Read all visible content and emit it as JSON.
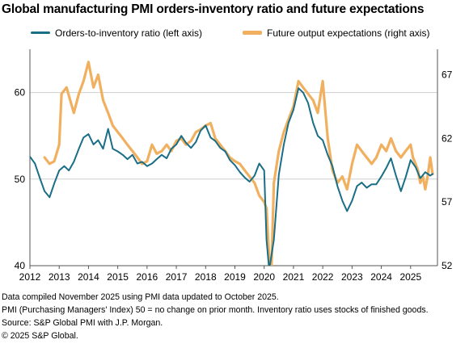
{
  "title": "Global manufacturing PMI orders-inventory ratio and future expectations",
  "notes": [
    "Data compiled November 2025 using PMI data updated to October 2025.",
    "PMI (Purchasing Managers' Index) 50 = no change on prior month. Inventory ratio uses stocks of finished goods.",
    "Source: S&P Global PMI with J.P. Morgan.",
    "© 2025 S&P Global."
  ],
  "chart_data": {
    "type": "line",
    "title": "Global manufacturing PMI orders-inventory ratio and future expectations",
    "x_tick_labels": [
      "2012",
      "2013",
      "2014",
      "2015",
      "2016",
      "2017",
      "2018",
      "2019",
      "2020",
      "2021",
      "2022",
      "2023",
      "2024",
      "2025"
    ],
    "x_range": [
      2012.0,
      2025.917
    ],
    "left_axis": {
      "range": [
        40,
        65
      ],
      "ticks": [
        40,
        50,
        60
      ]
    },
    "right_axis": {
      "range": [
        52,
        69
      ],
      "ticks": [
        52,
        57,
        62,
        67
      ]
    },
    "grid": "horizontal at left-axis ticks",
    "legend_position": "top",
    "series": [
      {
        "name": "Orders-to-inventory ratio (left axis)",
        "axis": "left",
        "color": "#1a6e86",
        "points": [
          [
            2012.0,
            52.6
          ],
          [
            2012.17,
            51.8
          ],
          [
            2012.33,
            50.2
          ],
          [
            2012.5,
            48.6
          ],
          [
            2012.67,
            47.9
          ],
          [
            2012.83,
            49.5
          ],
          [
            2013.0,
            51.0
          ],
          [
            2013.17,
            51.5
          ],
          [
            2013.33,
            51.0
          ],
          [
            2013.5,
            52.0
          ],
          [
            2013.67,
            53.5
          ],
          [
            2013.83,
            54.8
          ],
          [
            2014.0,
            55.2
          ],
          [
            2014.17,
            54.0
          ],
          [
            2014.33,
            54.5
          ],
          [
            2014.5,
            53.5
          ],
          [
            2014.67,
            55.8
          ],
          [
            2014.83,
            53.5
          ],
          [
            2015.0,
            53.2
          ],
          [
            2015.17,
            52.8
          ],
          [
            2015.33,
            52.3
          ],
          [
            2015.5,
            52.8
          ],
          [
            2015.67,
            51.8
          ],
          [
            2015.83,
            52.0
          ],
          [
            2016.0,
            51.5
          ],
          [
            2016.17,
            51.8
          ],
          [
            2016.33,
            52.3
          ],
          [
            2016.5,
            52.8
          ],
          [
            2016.67,
            52.4
          ],
          [
            2016.83,
            53.5
          ],
          [
            2017.0,
            54.0
          ],
          [
            2017.17,
            55.0
          ],
          [
            2017.33,
            54.2
          ],
          [
            2017.5,
            53.6
          ],
          [
            2017.67,
            54.3
          ],
          [
            2017.83,
            55.6
          ],
          [
            2018.0,
            56.2
          ],
          [
            2018.17,
            54.8
          ],
          [
            2018.33,
            54.4
          ],
          [
            2018.5,
            53.6
          ],
          [
            2018.67,
            53.2
          ],
          [
            2018.83,
            52.2
          ],
          [
            2019.0,
            51.6
          ],
          [
            2019.17,
            50.8
          ],
          [
            2019.33,
            50.2
          ],
          [
            2019.5,
            49.7
          ],
          [
            2019.67,
            50.4
          ],
          [
            2019.83,
            51.8
          ],
          [
            2020.0,
            51.0
          ],
          [
            2020.08,
            43.0
          ],
          [
            2020.17,
            39.5
          ],
          [
            2020.33,
            43.0
          ],
          [
            2020.5,
            50.5
          ],
          [
            2020.67,
            54.0
          ],
          [
            2020.83,
            56.5
          ],
          [
            2021.0,
            58.0
          ],
          [
            2021.17,
            60.5
          ],
          [
            2021.33,
            60.0
          ],
          [
            2021.5,
            58.8
          ],
          [
            2021.67,
            56.5
          ],
          [
            2021.83,
            55.0
          ],
          [
            2022.0,
            54.5
          ],
          [
            2022.17,
            52.8
          ],
          [
            2022.33,
            51.5
          ],
          [
            2022.5,
            49.2
          ],
          [
            2022.67,
            47.5
          ],
          [
            2022.83,
            46.3
          ],
          [
            2023.0,
            47.5
          ],
          [
            2023.17,
            49.2
          ],
          [
            2023.33,
            49.6
          ],
          [
            2023.5,
            49.0
          ],
          [
            2023.67,
            49.4
          ],
          [
            2023.83,
            49.4
          ],
          [
            2024.0,
            50.3
          ],
          [
            2024.17,
            51.3
          ],
          [
            2024.33,
            52.4
          ],
          [
            2024.5,
            50.4
          ],
          [
            2024.67,
            48.6
          ],
          [
            2024.83,
            50.2
          ],
          [
            2025.0,
            52.2
          ],
          [
            2025.17,
            51.4
          ],
          [
            2025.33,
            50.1
          ],
          [
            2025.5,
            50.8
          ],
          [
            2025.67,
            50.4
          ],
          [
            2025.75,
            50.6
          ]
        ]
      },
      {
        "name": "Future output expectations (right axis)",
        "axis": "right",
        "color": "#f0b060",
        "points": [
          [
            2012.5,
            60.5
          ],
          [
            2012.67,
            60.0
          ],
          [
            2012.83,
            60.2
          ],
          [
            2013.0,
            61.5
          ],
          [
            2013.08,
            65.5
          ],
          [
            2013.25,
            66.0
          ],
          [
            2013.5,
            64.0
          ],
          [
            2013.67,
            65.5
          ],
          [
            2013.83,
            66.5
          ],
          [
            2014.0,
            68.0
          ],
          [
            2014.17,
            66.0
          ],
          [
            2014.33,
            67.0
          ],
          [
            2014.5,
            65.0
          ],
          [
            2014.67,
            64.0
          ],
          [
            2014.83,
            63.0
          ],
          [
            2015.0,
            62.5
          ],
          [
            2015.17,
            62.0
          ],
          [
            2015.33,
            61.5
          ],
          [
            2015.5,
            61.0
          ],
          [
            2015.67,
            60.5
          ],
          [
            2015.83,
            60.0
          ],
          [
            2016.0,
            60.2
          ],
          [
            2016.17,
            61.5
          ],
          [
            2016.33,
            60.8
          ],
          [
            2016.5,
            61.0
          ],
          [
            2016.67,
            61.5
          ],
          [
            2016.83,
            61.0
          ],
          [
            2017.0,
            61.8
          ],
          [
            2017.17,
            62.0
          ],
          [
            2017.33,
            61.5
          ],
          [
            2017.5,
            61.8
          ],
          [
            2017.67,
            62.5
          ],
          [
            2017.83,
            62.7
          ],
          [
            2018.0,
            63.0
          ],
          [
            2018.17,
            63.2
          ],
          [
            2018.33,
            62.0
          ],
          [
            2018.5,
            61.5
          ],
          [
            2018.67,
            61.0
          ],
          [
            2018.83,
            60.5
          ],
          [
            2019.0,
            60.2
          ],
          [
            2019.17,
            60.0
          ],
          [
            2019.33,
            59.5
          ],
          [
            2019.5,
            59.0
          ],
          [
            2019.67,
            58.5
          ],
          [
            2019.83,
            57.5
          ],
          [
            2020.0,
            57.0
          ],
          [
            2020.08,
            56.5
          ],
          [
            2020.17,
            52.5
          ],
          [
            2020.25,
            52.0
          ],
          [
            2020.33,
            58.5
          ],
          [
            2020.5,
            61.0
          ],
          [
            2020.67,
            62.5
          ],
          [
            2020.83,
            63.5
          ],
          [
            2021.0,
            64.5
          ],
          [
            2021.17,
            66.5
          ],
          [
            2021.33,
            66.0
          ],
          [
            2021.5,
            65.5
          ],
          [
            2021.67,
            65.0
          ],
          [
            2021.83,
            64.0
          ],
          [
            2022.0,
            66.5
          ],
          [
            2022.17,
            62.0
          ],
          [
            2022.33,
            59.5
          ],
          [
            2022.5,
            58.5
          ],
          [
            2022.67,
            59.0
          ],
          [
            2022.83,
            58.0
          ],
          [
            2023.0,
            60.0
          ],
          [
            2023.17,
            61.5
          ],
          [
            2023.33,
            61.0
          ],
          [
            2023.5,
            60.5
          ],
          [
            2023.67,
            60.0
          ],
          [
            2023.83,
            60.5
          ],
          [
            2024.0,
            61.5
          ],
          [
            2024.17,
            61.0
          ],
          [
            2024.33,
            62.0
          ],
          [
            2024.5,
            61.0
          ],
          [
            2024.67,
            60.5
          ],
          [
            2024.83,
            61.0
          ],
          [
            2025.0,
            61.5
          ],
          [
            2025.08,
            60.5
          ],
          [
            2025.17,
            60.0
          ],
          [
            2025.25,
            59.5
          ],
          [
            2025.33,
            58.5
          ],
          [
            2025.42,
            59.0
          ],
          [
            2025.5,
            58.0
          ],
          [
            2025.58,
            59.0
          ],
          [
            2025.67,
            60.5
          ],
          [
            2025.75,
            59.2
          ]
        ]
      }
    ]
  }
}
